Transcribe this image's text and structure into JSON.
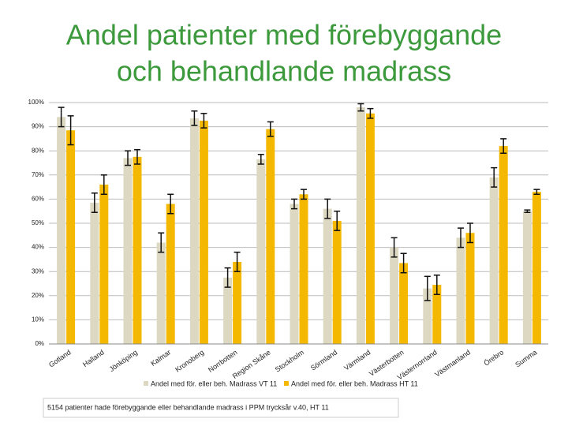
{
  "chart_data": {
    "type": "grouped_bar_error",
    "title": [
      "Andel patienter med förebyggande",
      "och behandlande madrass"
    ],
    "categories": [
      "Gotland",
      "Halland",
      "Jönköping",
      "Kalmar",
      "Kronoberg",
      "Norrbotten",
      "Region Skåne",
      "Stockholm",
      "Sörmland",
      "Värmland",
      "Västerbotten",
      "Västernorrland",
      "Västmanland",
      "Örebro",
      "Summa"
    ],
    "series": [
      {
        "name": "Andel med för. eller beh. Madrass VT 11",
        "color": "#dcd8c2",
        "values": [
          94,
          58.5,
          77,
          42,
          93.5,
          27.5,
          76.5,
          58,
          56,
          98,
          40,
          23,
          44,
          69,
          55
        ],
        "errors": [
          4,
          4,
          3,
          4,
          3,
          4,
          2,
          2,
          4,
          1.5,
          4,
          5,
          4,
          4,
          0.5
        ]
      },
      {
        "name": "Andel med för. eller beh. Madrass HT 11",
        "color": "#f5b800",
        "values": [
          88.5,
          66,
          77.5,
          58,
          92.5,
          34,
          89,
          62,
          51,
          95.5,
          33.5,
          24.5,
          46,
          82,
          63
        ],
        "errors": [
          6,
          4,
          3,
          4,
          3,
          4,
          3,
          2,
          4,
          2,
          4,
          4,
          4,
          3,
          1
        ]
      }
    ],
    "ylim": [
      0,
      100
    ],
    "yticks": [
      {
        "value": 0,
        "label": "0%"
      },
      {
        "value": 10,
        "label": "10%"
      },
      {
        "value": 20,
        "label": "20%"
      },
      {
        "value": 30,
        "label": "30%"
      },
      {
        "value": 40,
        "label": "40%"
      },
      {
        "value": 50,
        "label": "50%"
      },
      {
        "value": 60,
        "label": "60%"
      },
      {
        "value": 70,
        "label": "70%"
      },
      {
        "value": 80,
        "label": "80%"
      },
      {
        "value": 90,
        "label": "90%"
      },
      {
        "value": 100,
        "label": "100%"
      }
    ],
    "grid": true,
    "footnote": "5154 patienter hade förebyggande eller behandlande madrass i PPM trycksår v.40, HT 11"
  }
}
